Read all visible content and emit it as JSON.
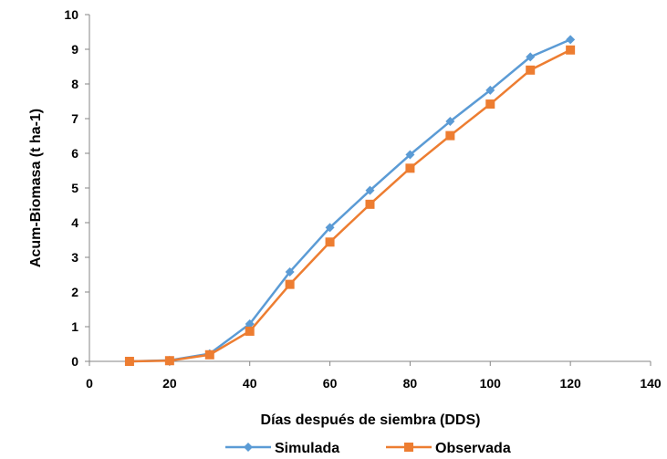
{
  "chart_data": {
    "type": "line",
    "xlabel": "Días después de siembra (DDS)",
    "ylabel": "Acum-Biomasa (t ha-1)",
    "xlim": [
      0,
      140
    ],
    "ylim": [
      0,
      10
    ],
    "xticks": [
      0,
      20,
      40,
      60,
      80,
      100,
      120,
      140
    ],
    "yticks": [
      0,
      1,
      2,
      3,
      4,
      5,
      6,
      7,
      8,
      9,
      10
    ],
    "grid": false,
    "legend_position": "bottom",
    "series": [
      {
        "name": "Simulada",
        "color": "#5B9BD5",
        "marker": "diamond",
        "x": [
          10,
          20,
          30,
          40,
          50,
          60,
          70,
          80,
          90,
          100,
          110,
          120
        ],
        "y": [
          0.0,
          0.03,
          0.22,
          1.08,
          2.58,
          3.86,
          4.93,
          5.96,
          6.92,
          7.82,
          8.78,
          9.28
        ]
      },
      {
        "name": "Observada",
        "color": "#ED7D31",
        "marker": "square",
        "x": [
          10,
          20,
          30,
          40,
          50,
          60,
          70,
          80,
          90,
          100,
          110,
          120
        ],
        "y": [
          0.0,
          0.02,
          0.19,
          0.87,
          2.22,
          3.44,
          4.53,
          5.57,
          6.51,
          7.42,
          8.4,
          8.98
        ]
      }
    ]
  }
}
